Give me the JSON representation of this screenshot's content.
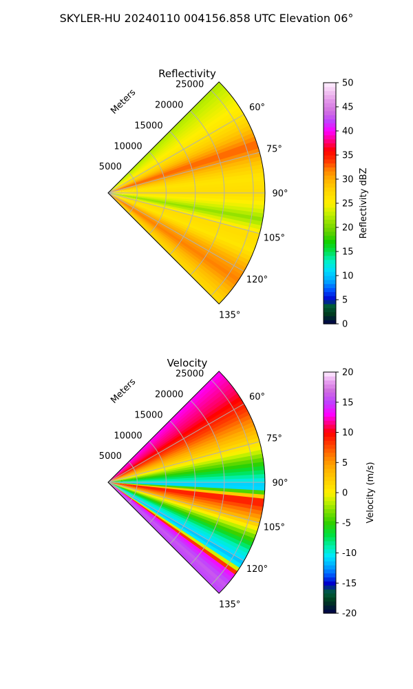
{
  "figure": {
    "title": "SKYLER-HU  20240110  004156.858 UTC Elevation 06°"
  },
  "chart_data": [
    {
      "type": "heatmap",
      "projection": "polar-sector",
      "title": "Reflectivity",
      "range_label": "Meters",
      "range_ticks": [
        "5000",
        "10000",
        "15000",
        "20000",
        "25000"
      ],
      "range_tick_values": [
        5000,
        10000,
        15000,
        20000,
        25000
      ],
      "range_max": 27000,
      "azimuth_ticks": [
        "60°",
        "75°",
        "90°",
        "105°",
        "120°",
        "135°"
      ],
      "azimuth_tick_values": [
        60,
        75,
        90,
        105,
        120,
        135
      ],
      "azimuth_range": [
        45,
        135
      ],
      "grid": true,
      "colorbar": {
        "label": "Reflectivity dBZ",
        "vmin": 0,
        "vmax": 50,
        "ticks": [
          "0",
          "5",
          "10",
          "15",
          "20",
          "25",
          "30",
          "35",
          "40",
          "45",
          "50"
        ],
        "tick_values": [
          0,
          5,
          10,
          15,
          20,
          25,
          30,
          35,
          40,
          45,
          50
        ],
        "stops": [
          {
            "v": 0,
            "c": "#00004c"
          },
          {
            "v": 2,
            "c": "#003a1e"
          },
          {
            "v": 4,
            "c": "#00603a"
          },
          {
            "v": 5,
            "c": "#0000cc"
          },
          {
            "v": 7,
            "c": "#0050ff"
          },
          {
            "v": 9,
            "c": "#00aaff"
          },
          {
            "v": 11,
            "c": "#00dcff"
          },
          {
            "v": 13,
            "c": "#00f0c8"
          },
          {
            "v": 15,
            "c": "#00e050"
          },
          {
            "v": 17,
            "c": "#10d000"
          },
          {
            "v": 19,
            "c": "#60d000"
          },
          {
            "v": 21,
            "c": "#90e000"
          },
          {
            "v": 23,
            "c": "#c8f000"
          },
          {
            "v": 25,
            "c": "#fff000"
          },
          {
            "v": 28,
            "c": "#ffd000"
          },
          {
            "v": 30,
            "c": "#ffb000"
          },
          {
            "v": 32,
            "c": "#ff8000"
          },
          {
            "v": 34,
            "c": "#ff3000"
          },
          {
            "v": 36,
            "c": "#ff0000"
          },
          {
            "v": 38,
            "c": "#ff0080"
          },
          {
            "v": 40,
            "c": "#ff00ff"
          },
          {
            "v": 42,
            "c": "#c040ff"
          },
          {
            "v": 44,
            "c": "#d070e0"
          },
          {
            "v": 46,
            "c": "#e090e8"
          },
          {
            "v": 48,
            "c": "#f0c0f0"
          },
          {
            "v": 50,
            "c": "#fff0ff"
          }
        ]
      },
      "field_bands": [
        {
          "az": 45,
          "value": 22
        },
        {
          "az": 52,
          "value": 24
        },
        {
          "az": 60,
          "value": 26
        },
        {
          "az": 66,
          "value": 29
        },
        {
          "az": 72,
          "value": 33
        },
        {
          "az": 78,
          "value": 29
        },
        {
          "az": 84,
          "value": 26
        },
        {
          "az": 90,
          "value": 27
        },
        {
          "az": 96,
          "value": 24
        },
        {
          "az": 100,
          "value": 21
        },
        {
          "az": 106,
          "value": 27
        },
        {
          "az": 112,
          "value": 26
        },
        {
          "az": 118,
          "value": 30
        },
        {
          "az": 124,
          "value": 32
        },
        {
          "az": 130,
          "value": 29
        },
        {
          "az": 135,
          "value": 27
        }
      ]
    },
    {
      "type": "heatmap",
      "projection": "polar-sector",
      "title": "Velocity",
      "range_label": "Meters",
      "range_ticks": [
        "5000",
        "10000",
        "15000",
        "20000",
        "25000"
      ],
      "range_tick_values": [
        5000,
        10000,
        15000,
        20000,
        25000
      ],
      "range_max": 27000,
      "azimuth_ticks": [
        "60°",
        "75°",
        "90°",
        "105°",
        "120°",
        "135°"
      ],
      "azimuth_tick_values": [
        60,
        75,
        90,
        105,
        120,
        135
      ],
      "azimuth_range": [
        45,
        135
      ],
      "grid": true,
      "colorbar": {
        "label": "Velocity (m/s)",
        "vmin": -20,
        "vmax": 20,
        "ticks": [
          "-20",
          "-15",
          "-10",
          "-5",
          "0",
          "5",
          "10",
          "15",
          "20"
        ],
        "tick_values": [
          -20,
          -15,
          -10,
          -5,
          0,
          5,
          10,
          15,
          20
        ],
        "stops": [
          {
            "v": -20,
            "c": "#00004c"
          },
          {
            "v": -18,
            "c": "#003a1e"
          },
          {
            "v": -16.5,
            "c": "#00603a"
          },
          {
            "v": -15,
            "c": "#0000cc"
          },
          {
            "v": -13.5,
            "c": "#0060ff"
          },
          {
            "v": -12,
            "c": "#00b0ff"
          },
          {
            "v": -10.5,
            "c": "#00e8ff"
          },
          {
            "v": -9,
            "c": "#00f0b0"
          },
          {
            "v": -7,
            "c": "#00e040"
          },
          {
            "v": -5,
            "c": "#30d000"
          },
          {
            "v": -3,
            "c": "#80e000"
          },
          {
            "v": -1.5,
            "c": "#c0f000"
          },
          {
            "v": 0,
            "c": "#fff000"
          },
          {
            "v": 2,
            "c": "#ffd000"
          },
          {
            "v": 4,
            "c": "#ffb000"
          },
          {
            "v": 6,
            "c": "#ff8000"
          },
          {
            "v": 8,
            "c": "#ff4000"
          },
          {
            "v": 10,
            "c": "#ff0000"
          },
          {
            "v": 11.5,
            "c": "#ff0080"
          },
          {
            "v": 13,
            "c": "#ff00ff"
          },
          {
            "v": 15,
            "c": "#c040ff"
          },
          {
            "v": 17,
            "c": "#d070e0"
          },
          {
            "v": 18.5,
            "c": "#e8a0f0"
          },
          {
            "v": 20,
            "c": "#fff0ff"
          }
        ]
      },
      "field_bands": [
        {
          "az": 45,
          "value": 13
        },
        {
          "az": 55,
          "value": 11
        },
        {
          "az": 63,
          "value": 8
        },
        {
          "az": 70,
          "value": 4
        },
        {
          "az": 77,
          "value": 0
        },
        {
          "az": 83,
          "value": -5
        },
        {
          "az": 88,
          "value": -9
        },
        {
          "az": 92,
          "value": -12
        },
        {
          "az": 97,
          "value": 10
        },
        {
          "az": 104,
          "value": 4
        },
        {
          "az": 110,
          "value": -3
        },
        {
          "az": 116,
          "value": -9
        },
        {
          "az": 122,
          "value": -12
        },
        {
          "az": 126,
          "value": 13
        },
        {
          "az": 131,
          "value": 16
        },
        {
          "az": 135,
          "value": 15
        }
      ]
    }
  ]
}
